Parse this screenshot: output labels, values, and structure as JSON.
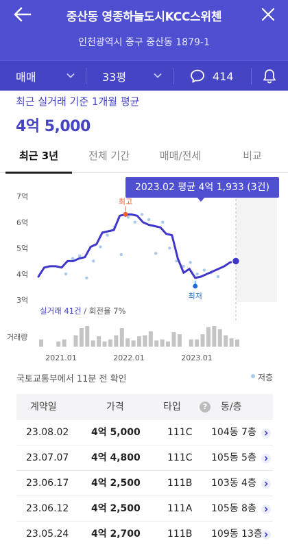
{
  "header": {
    "title": "중산동 영종하늘도시KCC스위첸",
    "address": "인천광역시 중구 중산동 1879-1"
  },
  "filters": {
    "trade": "매매",
    "area": "33평",
    "comments": "414"
  },
  "summary": {
    "subtitle": "최근 실거래 기준 1개월 평균",
    "price": "4억 5,000"
  },
  "tabs": [
    "최근 3년",
    "전체 기간",
    "매매/전세",
    "비교"
  ],
  "tooltip": "2023.02 평균 4억 1,933 (3건)",
  "colors": {
    "header": "#4f4fd1",
    "filter_bar": "#4444c4",
    "line": "#3f37c9",
    "high": "#ef5b35",
    "low": "#1f6fd6",
    "dot": "#a9c8ec",
    "volume": "#c4c4c4"
  },
  "chart_data": {
    "type": "line",
    "y_unit": "억",
    "ylim": [
      3,
      7
    ],
    "y_ticks": [
      "7억",
      "6억",
      "5억",
      "4억",
      "3억"
    ],
    "x_ticks": [
      "2021.01",
      "2022.01",
      "2023.01"
    ],
    "line_label": "실거래 41건",
    "line_label_extra": " / 회전율 7%",
    "high_label": "최고",
    "low_label": "최저",
    "volume_label": "거래량",
    "series": [
      {
        "values": [
          3.9,
          4.25,
          4.3,
          4.3,
          4.25,
          4.5,
          4.5,
          4.6,
          4.65,
          5.05,
          5.15,
          5.6,
          5.65,
          5.7,
          6.25,
          6.3,
          6.3,
          6.25,
          6.0,
          5.9,
          5.85,
          5.8,
          5.55,
          5.5,
          4.6,
          4.05,
          4.2,
          3.85,
          3.9,
          4.0,
          4.1,
          4.2,
          4.3,
          4.45,
          4.5
        ]
      }
    ],
    "trades": [
      4.0,
      4.6,
      4.7,
      3.85,
      4.5,
      5.05,
      5.5,
      5.8,
      4.75,
      6.2,
      6.0,
      6.3,
      6.1,
      4.8,
      6.0,
      5.0,
      4.5,
      4.3,
      4.45,
      4.0,
      4.15,
      4.05,
      3.9
    ],
    "volume": [
      0.35,
      0,
      0,
      0.25,
      0.35,
      0,
      0.55,
      0.9,
      1.0,
      0.3,
      0.5,
      0.25,
      0.35,
      0.55,
      0.9,
      0.4,
      0.3,
      0.5,
      0.55,
      0.75,
      0.3,
      0.35,
      0.25,
      0.7,
      0.6,
      0,
      0.35,
      0.35,
      0.6,
      0.95,
      1.0,
      0.85,
      0.55,
      0.4,
      0.35
    ]
  },
  "source": "국토교통부에서 11분 전 확인",
  "legend": "저층",
  "table": {
    "headers": [
      "계약일",
      "가격",
      "타입",
      "동/층"
    ],
    "help": "?",
    "rows": [
      {
        "date": "23.08.02",
        "price": "4억 5,000",
        "type": "111C",
        "floor": "104동 7층"
      },
      {
        "date": "23.07.07",
        "price": "4억 4,800",
        "type": "111C",
        "floor": "105동 5층"
      },
      {
        "date": "23.06.17",
        "price": "4억 2,500",
        "type": "111B",
        "floor": "103동 4층"
      },
      {
        "date": "23.06.12",
        "price": "4억 2,500",
        "type": "111A",
        "floor": "105동 8층"
      },
      {
        "date": "23.05.24",
        "price": "4억 2,700",
        "type": "111B",
        "floor": "109동 13층"
      }
    ]
  }
}
